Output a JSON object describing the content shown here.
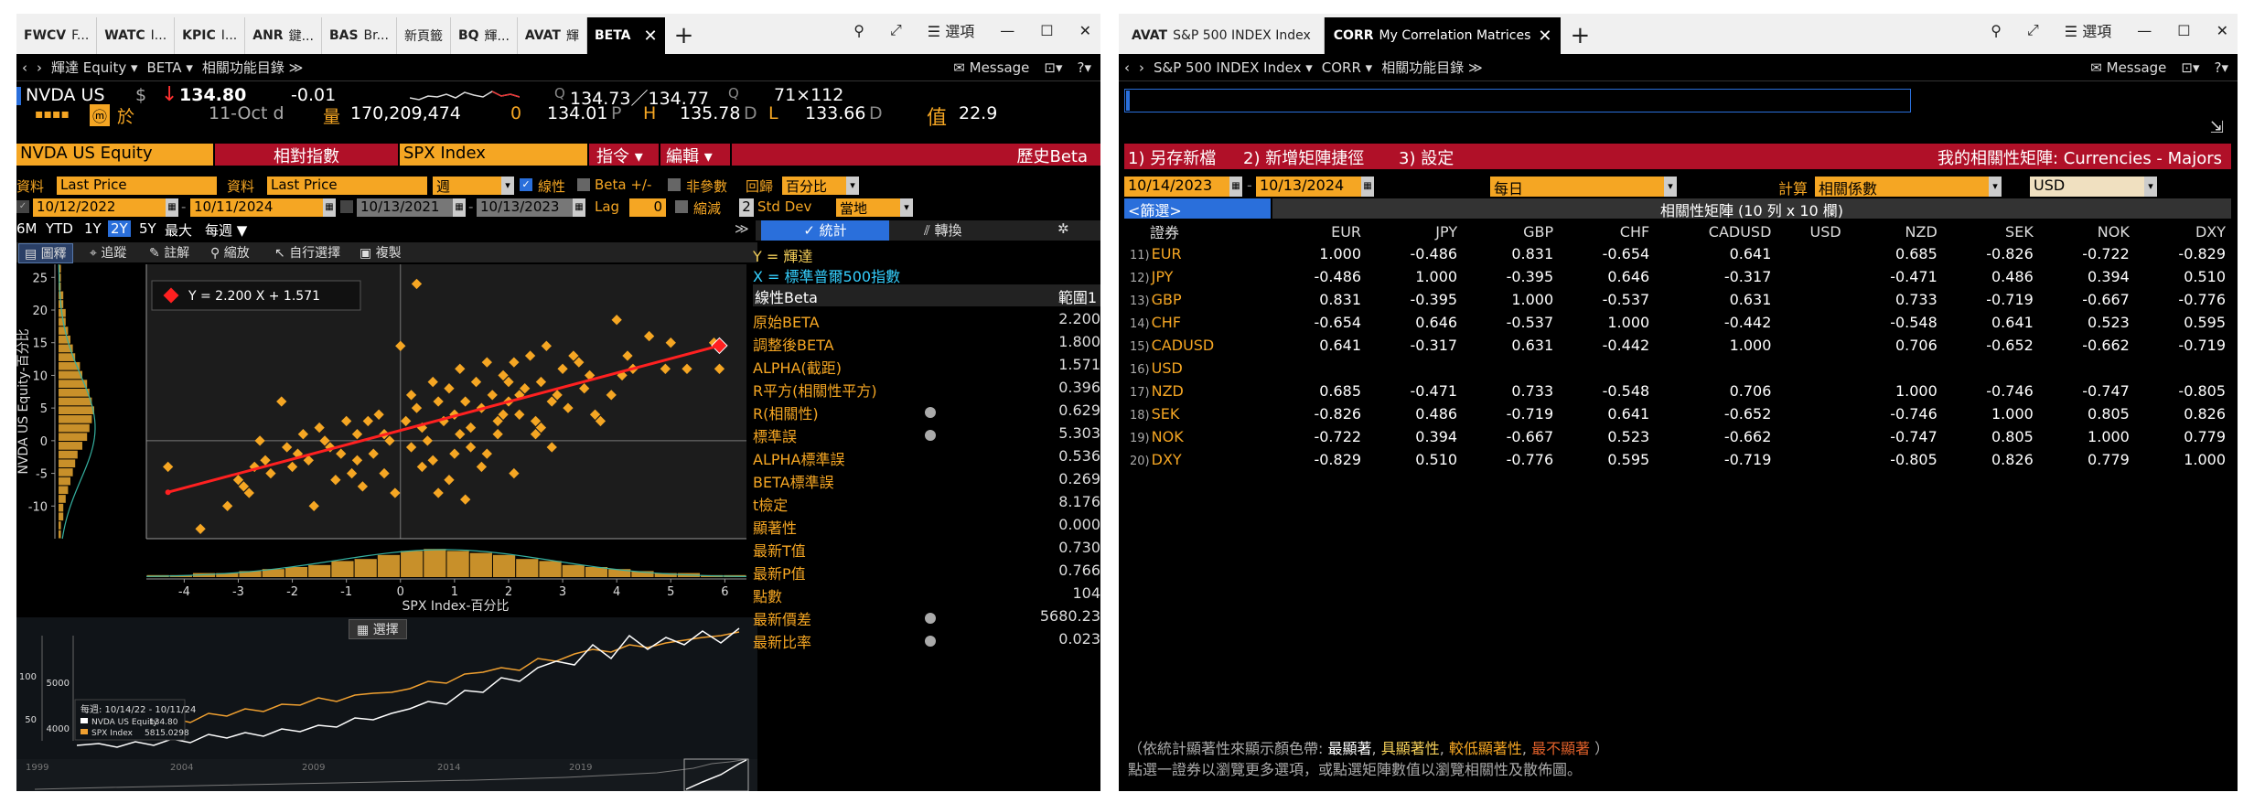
{
  "left": {
    "tabs": [
      {
        "code": "FWCV",
        "name": "F..."
      },
      {
        "code": "WATC",
        "name": "I..."
      },
      {
        "code": "KPIC",
        "name": "I..."
      },
      {
        "code": "ANR",
        "name": "鍵..."
      },
      {
        "code": "BAS",
        "name": "Br..."
      },
      {
        "code": "",
        "name": "新頁籤"
      },
      {
        "code": "BQ",
        "name": "輝..."
      },
      {
        "code": "AVAT",
        "name": "輝"
      },
      {
        "code": "BETA",
        "name": ""
      }
    ],
    "menu_label": "選項",
    "nav": {
      "security": "輝達 Equity",
      "func": "BETA",
      "related": "相關功能目錄",
      "message": "Message"
    },
    "quote": {
      "ticker": "NVDA US",
      "currency": "$",
      "arrow": "↓",
      "price": "134.80",
      "change": "-0.01",
      "bidask": "134.73／134.77",
      "bid_q": "Q",
      "ask_q": "Q",
      "size": "71×112",
      "date": "11-Oct d",
      "vol_label": "量",
      "volume": "170,209,474",
      "open_label": "0",
      "open": "134.01",
      "open_suffix": "P",
      "high_label": "H",
      "high": "135.78",
      "high_suffix": "D",
      "low_label": "L",
      "low": "133.66",
      "low_suffix": "D",
      "val_label": "值",
      "val": "22.9",
      "badge": "於"
    },
    "header": {
      "security": "NVDA US Equity",
      "relative": "相對指數",
      "index": "SPX Index",
      "cmd": "指令 ▾",
      "edit": "編輯 ▾",
      "title": "歷史Beta"
    },
    "settings": {
      "data_label": "資料",
      "data1": "Last Price",
      "data2_label": "資料",
      "data2": "Last Price",
      "period": "週",
      "line": "線性",
      "beta_pm": "Beta +/-",
      "nonparam": "非參數",
      "ret_label": "回歸",
      "ret": "百分比",
      "d1": "10/12/2022",
      "d2": "10/11/2024",
      "d3": "10/13/2021",
      "d4": "10/13/2023",
      "lag_label": "Lag",
      "lag": "0",
      "shrink": "縮減",
      "std": "2",
      "std_label": "Std Dev",
      "local": "當地"
    },
    "ranges": [
      "6M",
      "YTD",
      "1Y",
      "2Y",
      "5Y",
      "最大",
      "每週 ▼"
    ],
    "stat_tab": "統計",
    "switch_tab": "轉換",
    "tools": [
      "圖釋",
      "追蹤",
      "註解",
      "縮放",
      "自行選擇",
      "複製"
    ],
    "equation": "Y = 2.200 X + 1.571",
    "ylabel": "NVDA US Equity-百分比",
    "xlabel": "SPX Index-百分比",
    "yticks": [
      "25",
      "20",
      "15",
      "10",
      "5",
      "0",
      "-5",
      "-10"
    ],
    "xticks": [
      "-4",
      "-3",
      "-2",
      "-1",
      "0",
      "1",
      "2",
      "3",
      "4",
      "5",
      "6"
    ],
    "stats": {
      "y_label": "Y = 輝達",
      "x_label": "X = 標準普爾500指數",
      "head": "線性Beta",
      "head_r": "範圍1",
      "rows": [
        [
          "原始BETA",
          "2.200"
        ],
        [
          "調整後BETA",
          "1.800"
        ],
        [
          "ALPHA(截距)",
          "1.571"
        ],
        [
          "R平方(相關性平方)",
          "0.396"
        ],
        [
          "R(相關性)",
          "0.629"
        ],
        [
          "標準誤",
          "5.303"
        ],
        [
          "ALPHA標準誤",
          "0.536"
        ],
        [
          "BETA標準誤",
          "0.269"
        ],
        [
          "t檢定",
          "8.176"
        ],
        [
          "顯著性",
          "0.000"
        ],
        [
          "最新T值",
          "0.730"
        ],
        [
          "最新P值",
          "0.766"
        ],
        [
          "點數",
          "104"
        ],
        [
          "最新價差",
          "5680.23"
        ],
        [
          "最新比率",
          "0.023"
        ]
      ]
    },
    "bottom": {
      "select": "選擇",
      "legend_range": "每週: 10/14/22 - 10/11/24",
      "s1": "NVDA US Equity",
      "s1v": "134.80",
      "s2": "SPX Index",
      "s2v": "5815.0298",
      "lyt": [
        "100",
        "50"
      ],
      "ryt": [
        "5000",
        "4000"
      ],
      "years": [
        "1999",
        "2004",
        "2009",
        "2014",
        "2019"
      ]
    },
    "colors": {
      "orange": "#f5a623",
      "red": "#b01028",
      "trend": "#ff2020"
    }
  },
  "right": {
    "tabs": [
      {
        "code": "AVAT",
        "name": "S&P 500 INDEX Index"
      },
      {
        "code": "CORR",
        "name": "My Correlation Matrices"
      }
    ],
    "menu_label": "選項",
    "nav": {
      "security": "S&P 500 INDEX Index",
      "func": "CORR",
      "related": "相關功能目錄",
      "message": "Message"
    },
    "actions": [
      "1) 另存新檔",
      "2) 新增矩陣捷徑",
      "3) 設定"
    ],
    "title": "我的相關性矩陣: Currencies - Majors",
    "d1": "10/14/2023",
    "d2": "10/13/2024",
    "freq": "每日",
    "calc_label": "計算",
    "calc": "相關係數",
    "ccy": "USD",
    "filter": "<篩選>",
    "matrix_title": "相關性矩陣 (10 列 x 10 欄)",
    "sec_header": "證券",
    "cols": [
      "EUR",
      "JPY",
      "GBP",
      "CHF",
      "CADUSD",
      "USD",
      "NZD",
      "SEK",
      "NOK",
      "DXY"
    ],
    "rows": [
      {
        "n": "11)",
        "label": "EUR",
        "v": [
          "1.000",
          "-0.486",
          "0.831",
          "-0.654",
          "0.641",
          "",
          "0.685",
          "-0.826",
          "-0.722",
          "-0.829"
        ]
      },
      {
        "n": "12)",
        "label": "JPY",
        "v": [
          "-0.486",
          "1.000",
          "-0.395",
          "0.646",
          "-0.317",
          "",
          "-0.471",
          "0.486",
          "0.394",
          "0.510"
        ]
      },
      {
        "n": "13)",
        "label": "GBP",
        "v": [
          "0.831",
          "-0.395",
          "1.000",
          "-0.537",
          "0.631",
          "",
          "0.733",
          "-0.719",
          "-0.667",
          "-0.776"
        ]
      },
      {
        "n": "14)",
        "label": "CHF",
        "v": [
          "-0.654",
          "0.646",
          "-0.537",
          "1.000",
          "-0.442",
          "",
          "-0.548",
          "0.641",
          "0.523",
          "0.595"
        ]
      },
      {
        "n": "15)",
        "label": "CADUSD",
        "v": [
          "0.641",
          "-0.317",
          "0.631",
          "-0.442",
          "1.000",
          "",
          "0.706",
          "-0.652",
          "-0.662",
          "-0.719"
        ]
      },
      {
        "n": "16)",
        "label": "USD",
        "v": [
          "",
          "",
          "",
          "",
          "",
          "",
          "",
          "",
          "",
          ""
        ]
      },
      {
        "n": "17)",
        "label": "NZD",
        "v": [
          "0.685",
          "-0.471",
          "0.733",
          "-0.548",
          "0.706",
          "",
          "1.000",
          "-0.746",
          "-0.747",
          "-0.805"
        ]
      },
      {
        "n": "18)",
        "label": "SEK",
        "v": [
          "-0.826",
          "0.486",
          "-0.719",
          "0.641",
          "-0.652",
          "",
          "-0.746",
          "1.000",
          "0.805",
          "0.826"
        ]
      },
      {
        "n": "19)",
        "label": "NOK",
        "v": [
          "-0.722",
          "0.394",
          "-0.667",
          "0.523",
          "-0.662",
          "",
          "-0.747",
          "0.805",
          "1.000",
          "0.779"
        ]
      },
      {
        "n": "20)",
        "label": "DXY",
        "v": [
          "-0.829",
          "0.510",
          "-0.776",
          "0.595",
          "-0.719",
          "",
          "-0.805",
          "0.826",
          "0.779",
          "1.000"
        ]
      }
    ],
    "legend": {
      "pre": "（依統計顯著性來顯示顏色帶:",
      "a": "最顯著",
      "b": "具顯著性",
      "c": "較低顯著性",
      "d": "最不顯著",
      "post": "）"
    },
    "hint": "點選一證券以瀏覽更多選項，或點選矩陣數值以瀏覽相關性及散佈圖。"
  }
}
